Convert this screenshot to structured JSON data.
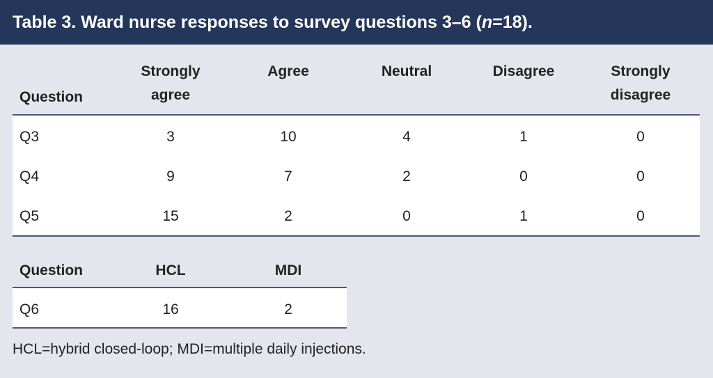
{
  "title": [
    "Table 3. Ward nurse responses to survey questions 3–6 (",
    "n",
    "=18)."
  ],
  "table1": {
    "header": [
      "Question",
      "Strongly agree",
      "Agree",
      "Neutral",
      "Disagree",
      "Strongly disagree"
    ],
    "rows": [
      [
        "Q3",
        3,
        10,
        4,
        1,
        0
      ],
      [
        "Q4",
        9,
        7,
        2,
        0,
        0
      ],
      [
        "Q5",
        15,
        2,
        0,
        1,
        0
      ]
    ]
  },
  "table2": {
    "header": [
      "Question",
      "HCL",
      "MDI"
    ],
    "rows": [
      [
        "Q6",
        16,
        2
      ]
    ]
  },
  "footnote": "HCL=hybrid closed-loop; MDI=multiple daily injections."
}
